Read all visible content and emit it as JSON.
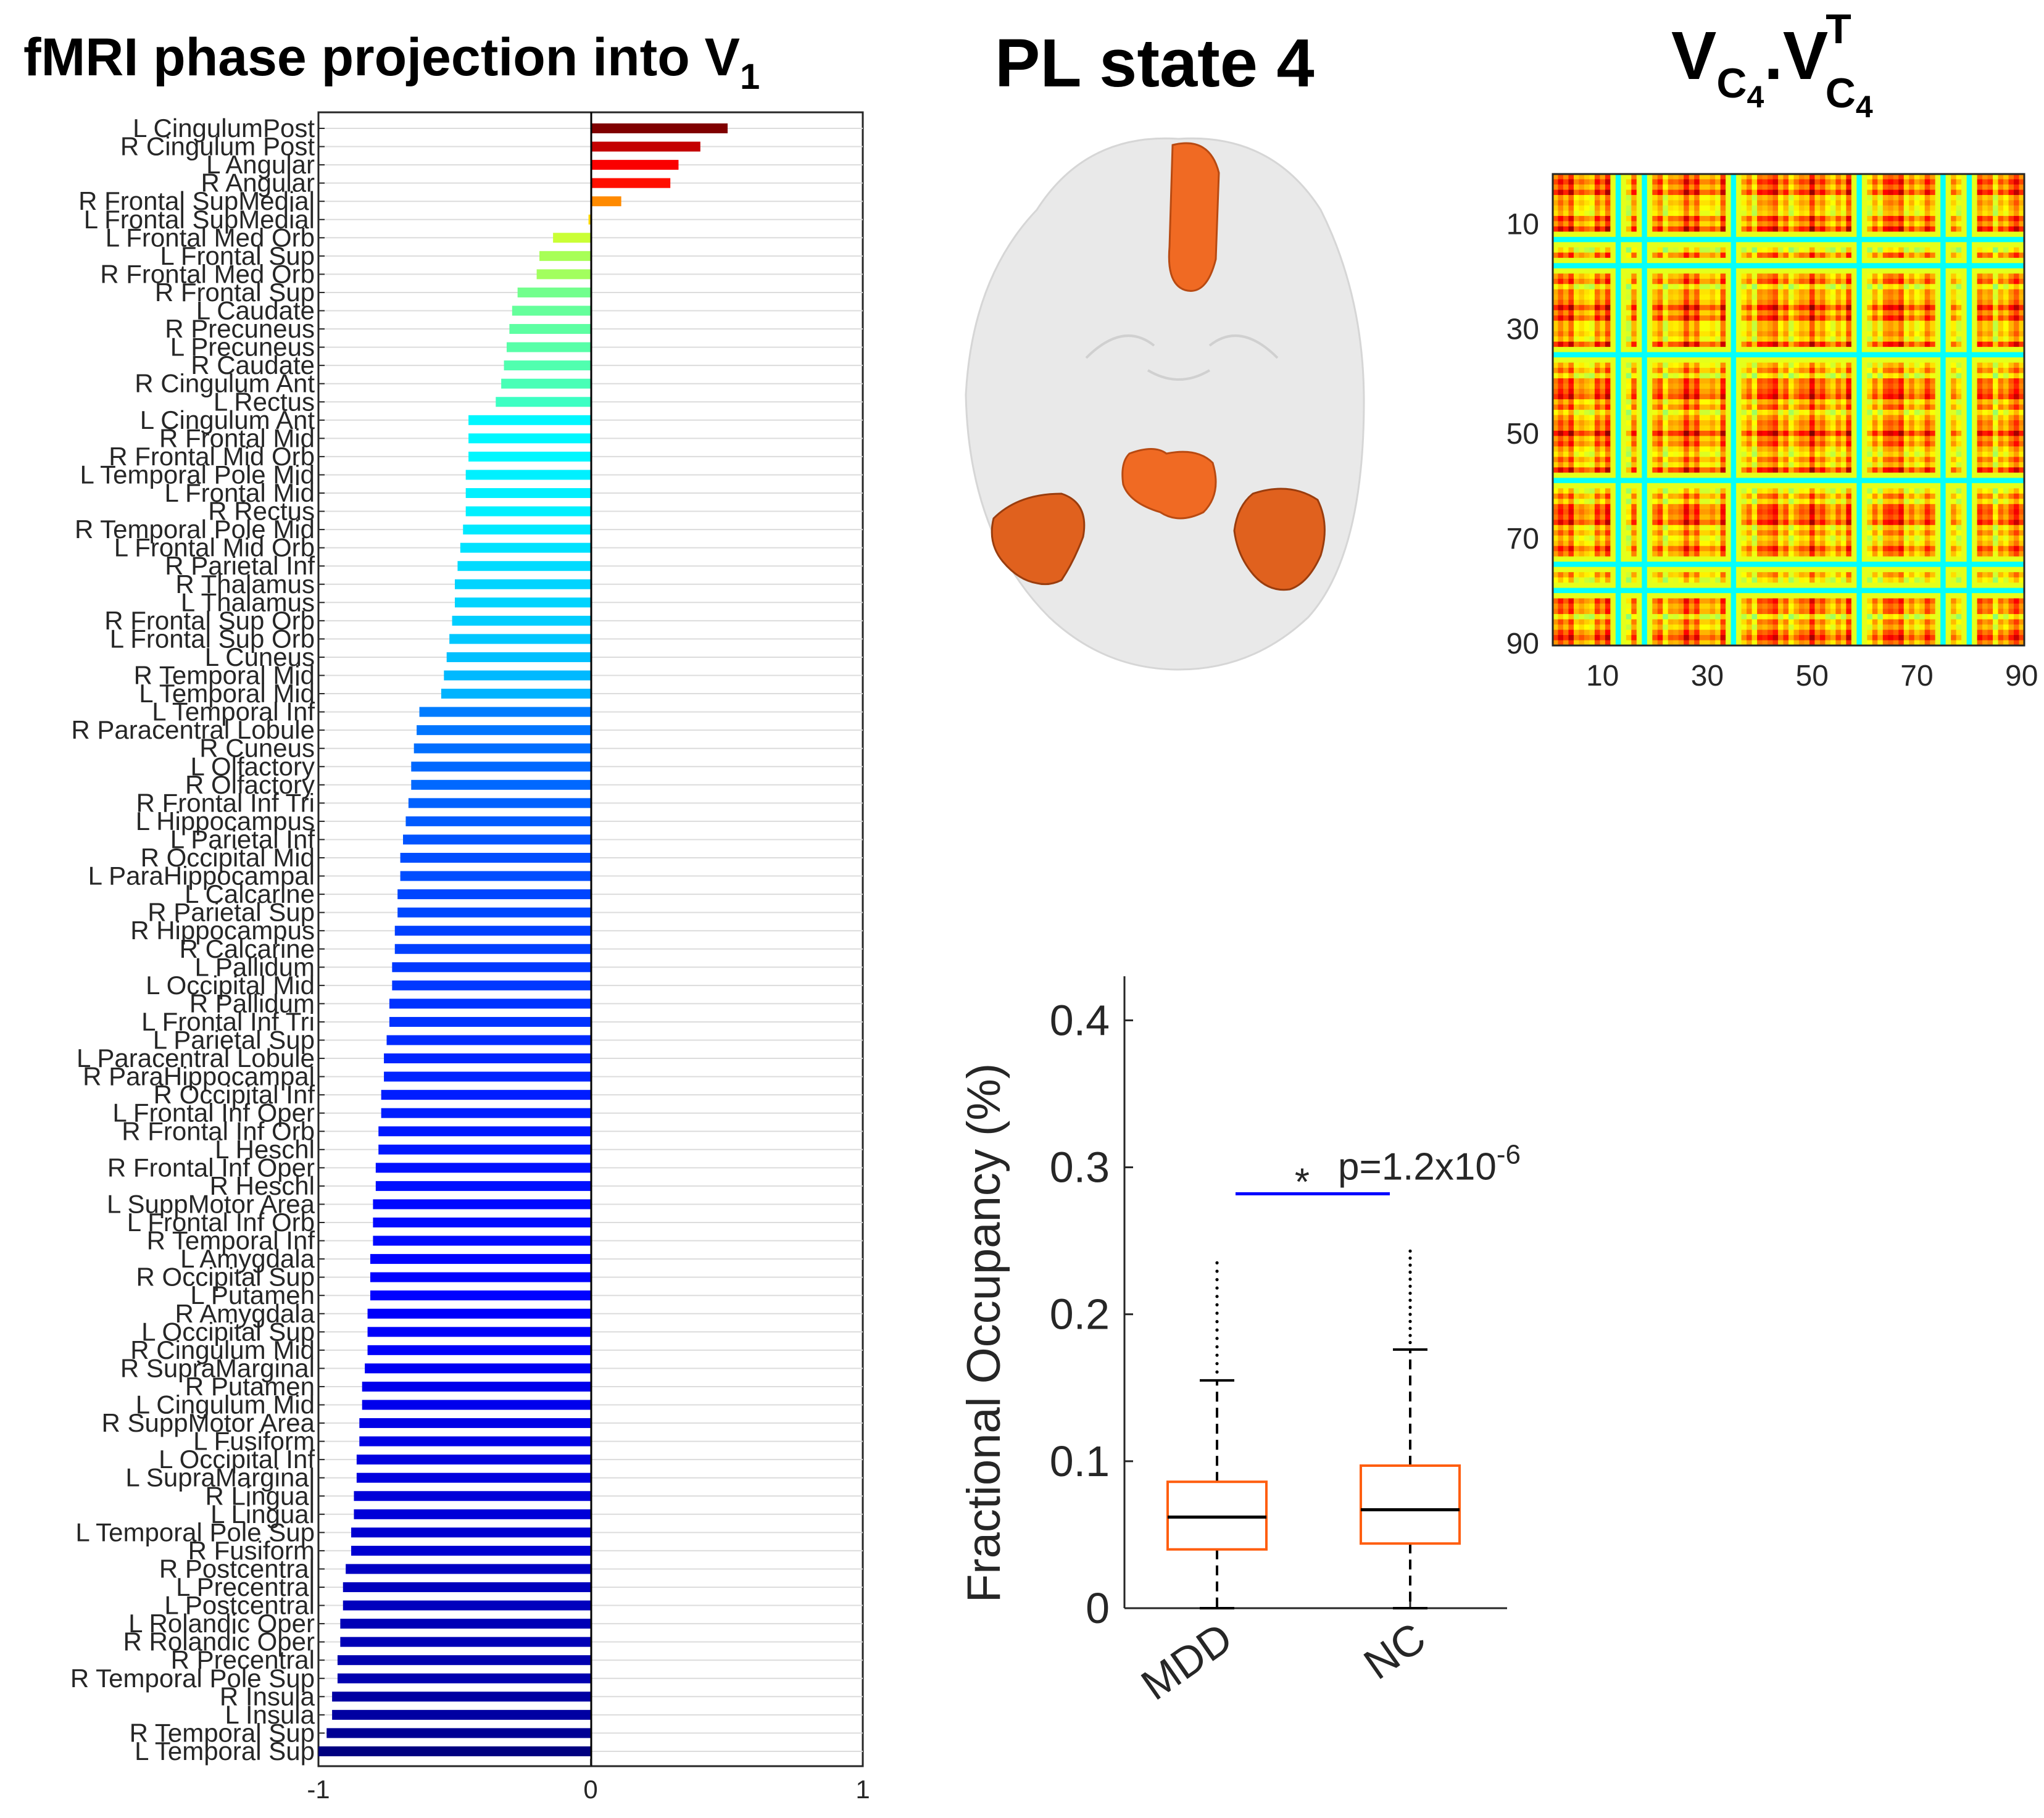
{
  "bar_panel": {
    "title": "fMRI  phase  projection  into  V",
    "title_sub": "1"
  },
  "brain_panel": {
    "title": "PL state 4"
  },
  "matrix_panel": {
    "title_main_1": "V",
    "title_sub_1": "C",
    "title_subsub_1": "4",
    "title_dot": ".",
    "title_main_2": "V",
    "title_sup_2": "T",
    "title_sub_2": "C",
    "title_subsub_2": "4"
  },
  "box_panel": {
    "ylabel": "Fractional Occupancy (%)",
    "pvalue_prefix": "p=1.2x10",
    "pvalue_exp": "-6",
    "star": "*"
  },
  "colors": {
    "blue_line": "#0000ff",
    "box_orange": "#ff5e10",
    "brain_orange": "#f06a23",
    "brain_gray": "#e6e6e6"
  },
  "chart_data": [
    {
      "type": "bar",
      "orientation": "horizontal",
      "title": "fMRI  phase  projection  into  V1",
      "xlim": [
        -1,
        1
      ],
      "xticks": [
        "-1",
        "0",
        "1"
      ],
      "colormap": "jet",
      "categories": [
        "L CingulumPost",
        "R Cingulum Post",
        "L Angular",
        "R Angular",
        "R Frontal SupMedial",
        "L Frontal SupMedial",
        "L Frontal Med Orb",
        "L Frontal Sup",
        "R Frontal Med Orb",
        "R Frontal Sup",
        "L Caudate",
        "R Precuneus",
        "L Precuneus",
        "R Caudate",
        "R Cingulum Ant",
        "L Rectus",
        "L Cingulum Ant",
        "R Frontal Mid",
        "R Frontal Mid Orb",
        "L Temporal Pole Mid",
        "L Frontal Mid",
        "R Rectus",
        "R Temporal Pole Mid",
        "L Frontal Mid Orb",
        "R Parietal Inf",
        "R Thalamus",
        "L Thalamus",
        "R Frontal Sup Orb",
        "L Frontal Sup Orb",
        "L Cuneus",
        "R Temporal Mid",
        "L Temporal Mid",
        "L Temporal Inf",
        "R Paracentral Lobule",
        "R Cuneus",
        "L Olfactory",
        "R Olfactory",
        "R Frontal Inf Tri",
        "L Hippocampus",
        "L Parietal Inf",
        "R Occipital Mid",
        "L ParaHippocampal",
        "L Calcarine",
        "R Parietal Sup",
        "R Hippocampus",
        "R Calcarine",
        "L Pallidum",
        "L Occipital Mid",
        "R Pallidum",
        "L Frontal Inf Tri",
        "L Parietal Sup",
        "L Paracentral Lobule",
        "R ParaHippocampal",
        "R Occipital Inf",
        "L Frontal Inf Oper",
        "R Frontal Inf Orb",
        "L Heschl",
        "R Frontal Inf Oper",
        "R Heschl",
        "L SuppMotor Area",
        "L Frontal Inf Orb",
        "R Temporal Inf",
        "L Amygdala",
        "R Occipital Sup",
        "L Putamen",
        "R Amygdala",
        "L Occipital Sup",
        "R Cingulum Mid",
        "R SupraMarginal",
        "R Putamen",
        "L Cingulum Mid",
        "R SuppMotor Area",
        "L Fusiform",
        "L Occipital Inf",
        "L SupraMarginal",
        "R Lingual",
        "L Lingual",
        "L Temporal Pole Sup",
        "R Fusiform",
        "R Postcentral",
        "L Precentral",
        "L Postcentral",
        "L Rolandic Oper",
        "R Rolandic Oper",
        "R Precentral",
        "R Temporal Pole Sup",
        "R Insula",
        "L Insula",
        "R Temporal Sup",
        "L Temporal Sup"
      ],
      "values": [
        0.5,
        0.4,
        0.32,
        0.29,
        0.11,
        -0.01,
        -0.14,
        -0.19,
        -0.2,
        -0.27,
        -0.29,
        -0.3,
        -0.31,
        -0.32,
        -0.33,
        -0.35,
        -0.45,
        -0.45,
        -0.45,
        -0.46,
        -0.46,
        -0.46,
        -0.47,
        -0.48,
        -0.49,
        -0.5,
        -0.5,
        -0.51,
        -0.52,
        -0.53,
        -0.54,
        -0.55,
        -0.63,
        -0.64,
        -0.65,
        -0.66,
        -0.66,
        -0.67,
        -0.68,
        -0.69,
        -0.7,
        -0.7,
        -0.71,
        -0.71,
        -0.72,
        -0.72,
        -0.73,
        -0.73,
        -0.74,
        -0.74,
        -0.75,
        -0.76,
        -0.76,
        -0.77,
        -0.77,
        -0.78,
        -0.78,
        -0.79,
        -0.79,
        -0.8,
        -0.8,
        -0.8,
        -0.81,
        -0.81,
        -0.81,
        -0.82,
        -0.82,
        -0.82,
        -0.83,
        -0.84,
        -0.84,
        -0.85,
        -0.85,
        -0.86,
        -0.86,
        -0.87,
        -0.87,
        -0.88,
        -0.88,
        -0.9,
        -0.91,
        -0.91,
        -0.92,
        -0.92,
        -0.93,
        -0.93,
        -0.95,
        -0.95,
        -0.97,
        -1.0
      ]
    },
    {
      "type": "heatmap",
      "title": "VC4.VC4T",
      "size": 90,
      "xticks": [
        "10",
        "30",
        "50",
        "70",
        "90"
      ],
      "yticks": [
        "10",
        "30",
        "50",
        "70",
        "90"
      ],
      "low_indices": [
        12,
        17,
        34,
        58,
        74,
        79
      ]
    },
    {
      "type": "box",
      "ylabel": "Fractional Occupancy (%)",
      "categories": [
        "MDD",
        "NC"
      ],
      "ylim": [
        0,
        0.43
      ],
      "yticks": [
        "0",
        "0.1",
        "0.2",
        "0.3",
        "0.4"
      ],
      "stats": [
        {
          "name": "MDD",
          "min": 0,
          "q1": 0.04,
          "median": 0.062,
          "q3": 0.086,
          "whisker_high": 0.155,
          "outlier_max": 0.235
        },
        {
          "name": "NC",
          "min": 0,
          "q1": 0.044,
          "median": 0.067,
          "q3": 0.097,
          "whisker_high": 0.176,
          "outlier_max": 0.243
        }
      ],
      "significance": {
        "y": 0.282,
        "label": "p=1.2x10-6"
      }
    }
  ]
}
